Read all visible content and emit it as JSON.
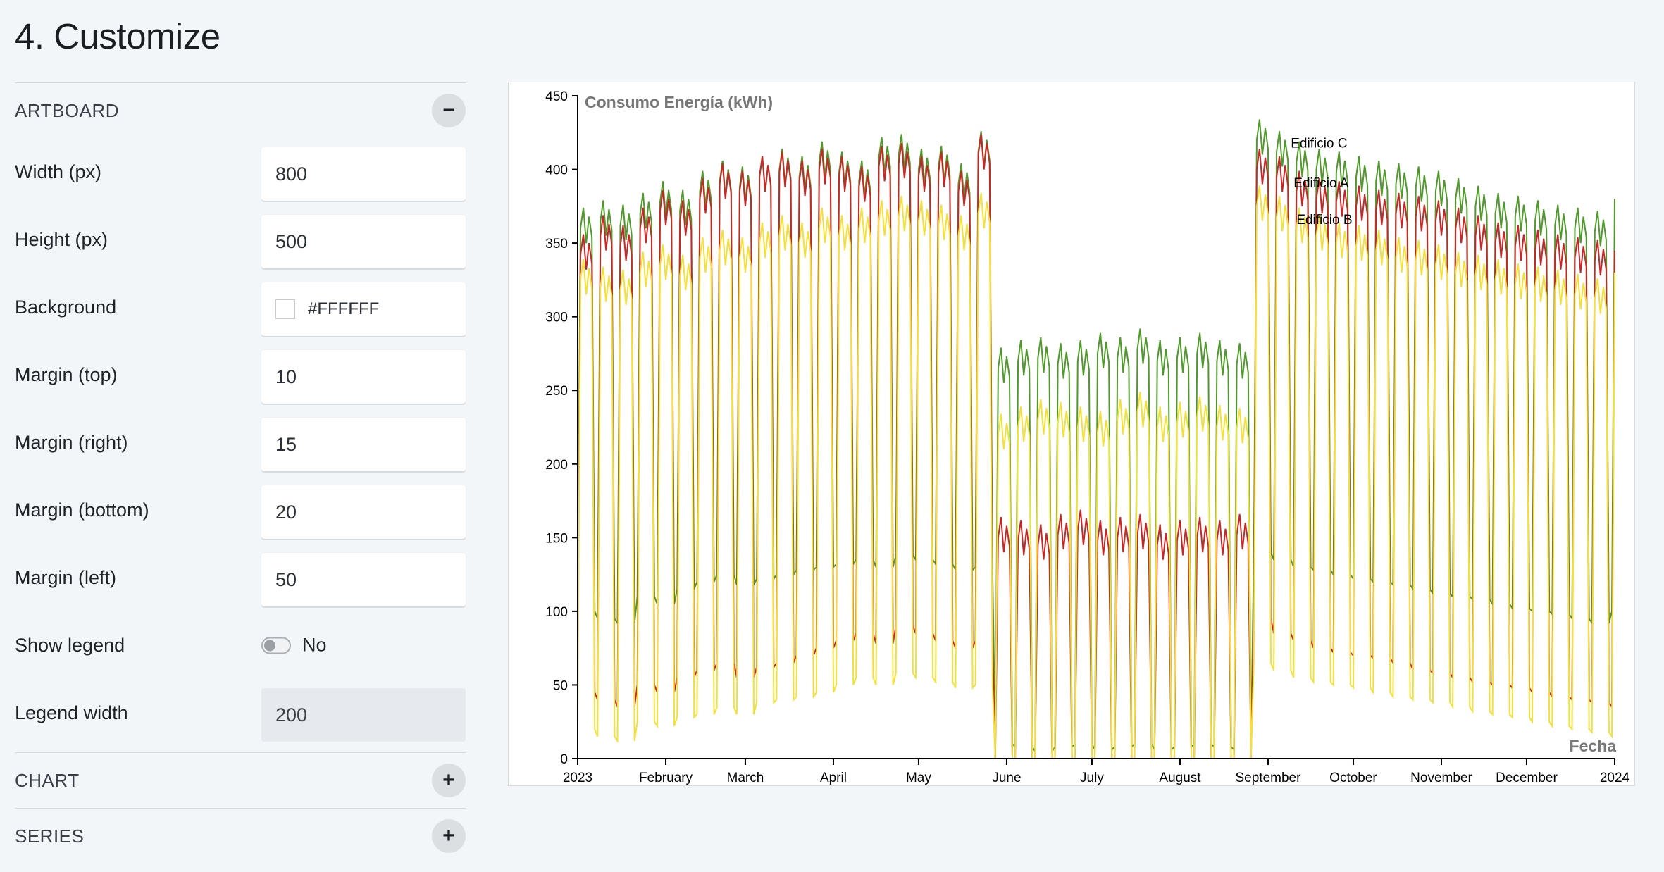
{
  "page": {
    "title": "4. Customize"
  },
  "artboard": {
    "section_title": "ARTBOARD",
    "toggle_symbol": "−",
    "fields": [
      {
        "label": "Width (px)",
        "value": "800"
      },
      {
        "label": "Height (px)",
        "value": "500"
      },
      {
        "label": "Background",
        "value": "#FFFFFF"
      },
      {
        "label": "Margin (top)",
        "value": "10"
      },
      {
        "label": "Margin (right)",
        "value": "15"
      },
      {
        "label": "Margin (bottom)",
        "value": "20"
      },
      {
        "label": "Margin (left)",
        "value": "50"
      }
    ],
    "show_legend": {
      "label": "Show legend",
      "value": "No",
      "checked": false
    },
    "legend_width": {
      "label": "Legend width",
      "value": "200",
      "disabled": true
    }
  },
  "chart_section": {
    "title": "CHART",
    "toggle_symbol": "+"
  },
  "series_section": {
    "title": "SERIES",
    "toggle_symbol": "+"
  },
  "colors": {
    "edificio_a": "#c62828",
    "edificio_b": "#f2e13a",
    "edificio_c": "#4f9a2b",
    "axis_title": "#777777"
  },
  "chart_data": {
    "type": "line",
    "ylabel": "Consumo Energía (kWh)",
    "xlabel": "Fecha",
    "ylim": [
      0,
      450
    ],
    "yticks": [
      "0",
      "50",
      "100",
      "150",
      "200",
      "250",
      "300",
      "350",
      "400",
      "450"
    ],
    "xticks": [
      "2023",
      "February",
      "March",
      "April",
      "May",
      "June",
      "July",
      "August",
      "September",
      "October",
      "November",
      "December",
      "2024"
    ],
    "xlim": [
      "2023-01-01",
      "2024-01-01"
    ],
    "grid": false,
    "legend": "none",
    "series": [
      {
        "name": "Edificio A",
        "label_at": "2023-09-10",
        "weekly_samples": {
          "weekday": [
            342,
            355,
            348,
            360,
            372,
            365,
            380,
            390,
            385,
            395,
            398,
            392,
            400,
            395,
            388,
            402,
            404,
            395,
            398,
            385,
            410,
            150,
            148,
            145,
            152,
            155,
            148,
            150,
            152,
            145,
            148,
            150,
            148,
            152,
            400,
            395,
            385,
            380,
            378,
            375,
            372,
            370,
            368,
            365,
            360,
            355,
            350,
            348,
            345,
            342,
            340,
            338,
            345
          ],
          "weekend": [
            45,
            40,
            35,
            50,
            45,
            55,
            60,
            65,
            55,
            62,
            65,
            70,
            75,
            80,
            85,
            78,
            90,
            85,
            80,
            75,
            80,
            0,
            0,
            0,
            0,
            0,
            0,
            0,
            0,
            0,
            0,
            0,
            0,
            0,
            95,
            85,
            80,
            75,
            72,
            70,
            68,
            65,
            60,
            58,
            55,
            52,
            50,
            48,
            45,
            42,
            40,
            38,
            35
          ]
        }
      },
      {
        "name": "Edificio B",
        "label_at": "2023-09-11",
        "weekly_samples": {
          "weekday": [
            325,
            320,
            318,
            330,
            335,
            328,
            340,
            345,
            340,
            350,
            355,
            350,
            360,
            355,
            360,
            365,
            368,
            365,
            362,
            355,
            370,
            220,
            225,
            230,
            228,
            225,
            222,
            230,
            235,
            225,
            228,
            232,
            226,
            224,
            375,
            368,
            360,
            355,
            350,
            348,
            345,
            340,
            338,
            335,
            330,
            328,
            325,
            322,
            320,
            318,
            315,
            312,
            330
          ],
          "weekend": [
            20,
            15,
            12,
            25,
            22,
            28,
            30,
            35,
            30,
            38,
            40,
            42,
            45,
            50,
            55,
            50,
            58,
            55,
            52,
            48,
            50,
            0,
            0,
            0,
            0,
            0,
            0,
            0,
            0,
            0,
            0,
            0,
            0,
            0,
            65,
            60,
            55,
            52,
            50,
            48,
            45,
            42,
            40,
            38,
            35,
            32,
            30,
            28,
            25,
            22,
            20,
            18,
            15
          ]
        }
      },
      {
        "name": "Edificio C",
        "label_at": "2023-09-09",
        "weekly_samples": {
          "weekday": [
            360,
            365,
            362,
            370,
            378,
            372,
            385,
            392,
            388,
            395,
            400,
            395,
            405,
            398,
            392,
            408,
            410,
            400,
            402,
            390,
            412,
            265,
            270,
            272,
            268,
            270,
            275,
            272,
            278,
            270,
            272,
            275,
            270,
            268,
            420,
            412,
            405,
            400,
            398,
            395,
            392,
            390,
            388,
            385,
            380,
            375,
            370,
            368,
            365,
            362,
            360,
            358,
            380
          ],
          "weekend": [
            100,
            95,
            92,
            110,
            105,
            115,
            120,
            125,
            118,
            122,
            125,
            128,
            130,
            132,
            135,
            130,
            138,
            135,
            132,
            128,
            130,
            10,
            8,
            5,
            8,
            10,
            6,
            8,
            10,
            6,
            8,
            10,
            8,
            6,
            140,
            135,
            130,
            128,
            125,
            122,
            120,
            118,
            115,
            112,
            110,
            108,
            105,
            102,
            100,
            98,
            95,
            92,
            100
          ]
        }
      }
    ]
  }
}
